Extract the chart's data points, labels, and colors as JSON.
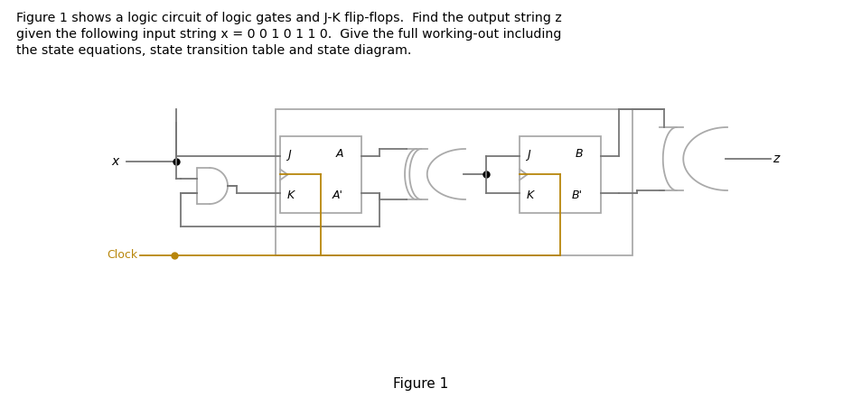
{
  "bg_color": "#ffffff",
  "gate_color": "#aaaaaa",
  "wire_color": "#777777",
  "clock_color": "#b8860b",
  "text_color": "#000000",
  "line_width": 1.3,
  "text_lines": [
    "Figure 1 shows a logic circuit of logic gates and J-K flip-flops.  Find the output string z",
    "given the following input string x = 0 0 1 0 1 1 0.  Give the full working-out including",
    "the state equations, state transition table and state diagram."
  ],
  "figure_label": "Figure 1"
}
